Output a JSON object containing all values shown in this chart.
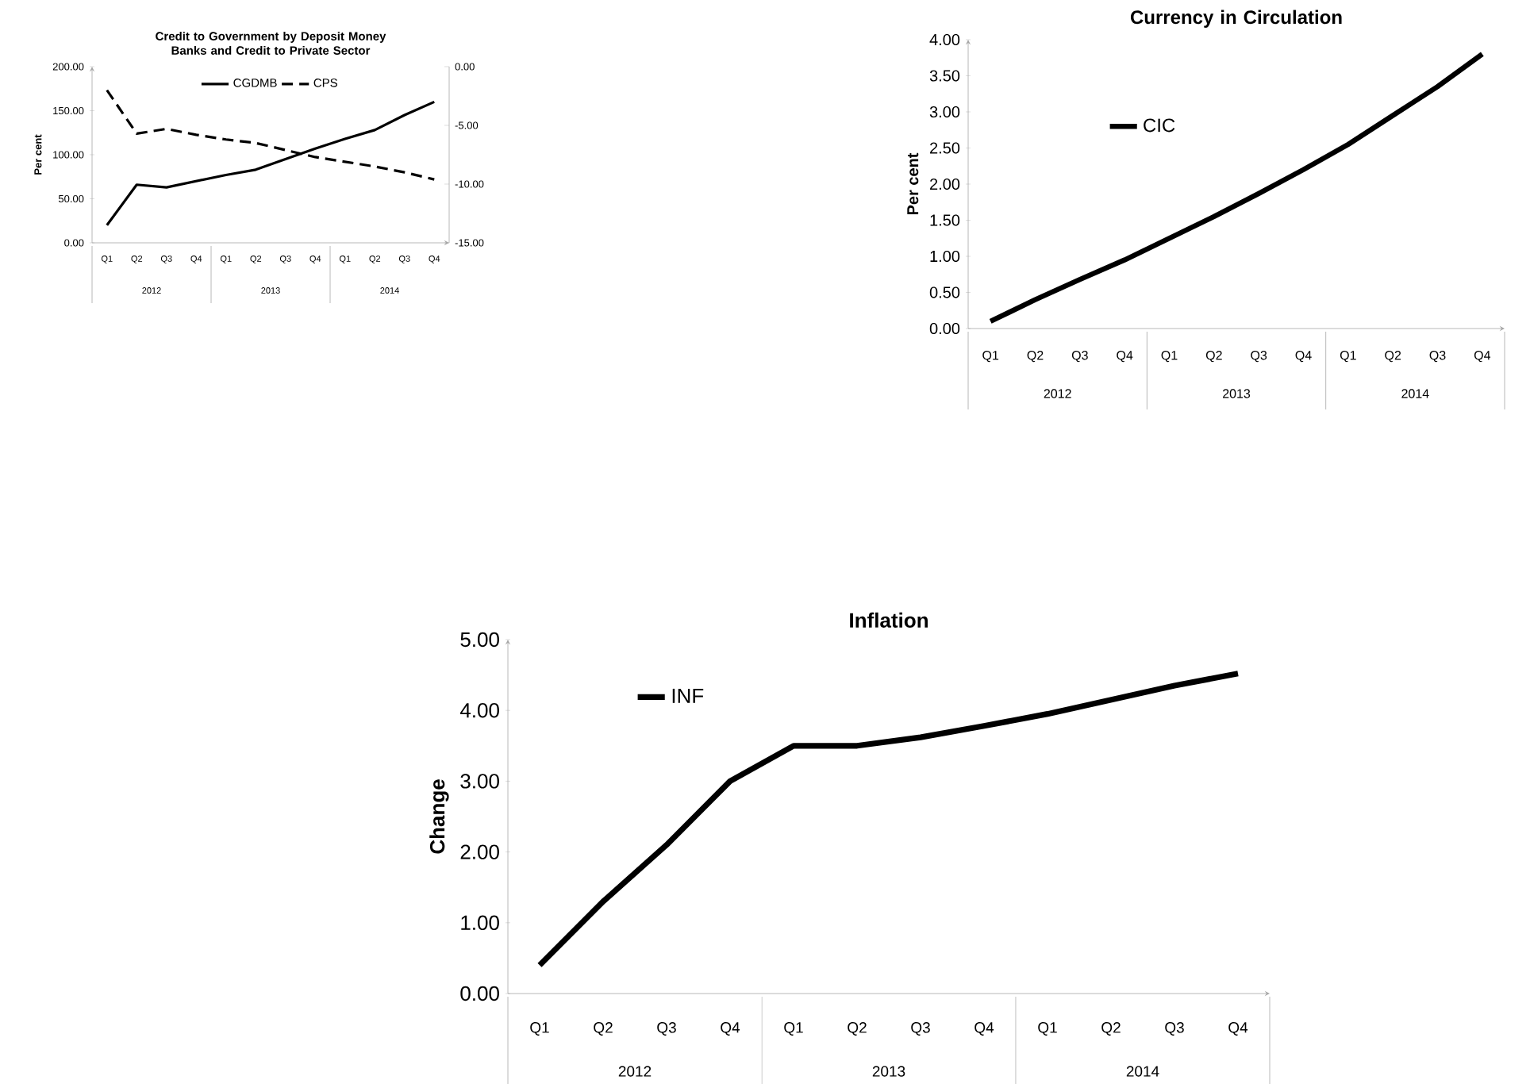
{
  "chart_data": [
    {
      "type": "line",
      "title": "Credit to Government by Deposit Money Banks and Credit to Private Sector",
      "ylabel": "Per cent",
      "categories": [
        "Q1",
        "Q2",
        "Q3",
        "Q4",
        "Q1",
        "Q2",
        "Q3",
        "Q4",
        "Q1",
        "Q2",
        "Q3",
        "Q4"
      ],
      "annotations": [
        "2012",
        "2013",
        "2014"
      ],
      "series": [
        {
          "name": "CGDMB",
          "color": "#000000",
          "line_style": "solid",
          "values": [
            20,
            66,
            63,
            70,
            77,
            83,
            95,
            107,
            118,
            128,
            145,
            160
          ]
        },
        {
          "name": "CPS",
          "color": "#000000",
          "line_style": "dashed",
          "axis": "y2",
          "values": [
            -2,
            -5.7,
            -5.3,
            -5.8,
            -6.2,
            -6.5,
            -7.1,
            -7.7,
            -8.1,
            -8.5,
            -9.0,
            -9.6
          ]
        }
      ],
      "ylim": [
        0,
        200
      ],
      "yticks": [
        {
          "value": 0,
          "label": "0.00"
        },
        {
          "value": 50,
          "label": "50.00"
        },
        {
          "value": 100,
          "label": "100.00"
        },
        {
          "value": 150,
          "label": "150.00"
        },
        {
          "value": 200,
          "label": "200.00"
        }
      ],
      "y2lim": [
        -15,
        0
      ],
      "y2ticks": [
        {
          "value": -15,
          "label": "-15.00"
        },
        {
          "value": -10,
          "label": "-10.00"
        },
        {
          "value": -5,
          "label": "-5.00"
        },
        {
          "value": 0,
          "label": "0.00"
        }
      ],
      "legend": "top"
    },
    {
      "type": "line",
      "title": "Currency in Circulation",
      "ylabel": "Per cent",
      "categories": [
        "Q1",
        "Q2",
        "Q3",
        "Q4",
        "Q1",
        "Q2",
        "Q3",
        "Q4",
        "Q1",
        "Q2",
        "Q3",
        "Q4"
      ],
      "annotations": [
        "2012",
        "2013",
        "2014"
      ],
      "series": [
        {
          "name": "CIC",
          "color": "#000000",
          "line_style": "solid",
          "values": [
            0.1,
            0.4,
            0.68,
            0.95,
            1.25,
            1.55,
            1.87,
            2.2,
            2.55,
            2.95,
            3.35,
            3.8
          ]
        }
      ],
      "ylim": [
        0,
        4
      ],
      "yticks": [
        {
          "value": 0,
          "label": "0.00"
        },
        {
          "value": 0.5,
          "label": "0.50"
        },
        {
          "value": 1,
          "label": "1.00"
        },
        {
          "value": 1.5,
          "label": "1.50"
        },
        {
          "value": 2,
          "label": "2.00"
        },
        {
          "value": 2.5,
          "label": "2.50"
        },
        {
          "value": 3,
          "label": "3.00"
        },
        {
          "value": 3.5,
          "label": "3.50"
        },
        {
          "value": 4,
          "label": "4.00"
        }
      ],
      "legend": "top left"
    },
    {
      "type": "line",
      "title": "Inflation",
      "ylabel": "Change",
      "categories": [
        "Q1",
        "Q2",
        "Q3",
        "Q4",
        "Q1",
        "Q2",
        "Q3",
        "Q4",
        "Q1",
        "Q2",
        "Q3",
        "Q4"
      ],
      "annotations": [
        "2012",
        "2013",
        "2014"
      ],
      "series": [
        {
          "name": "INF",
          "color": "#000000",
          "line_style": "solid",
          "values": [
            0.4,
            1.3,
            2.1,
            3.0,
            3.5,
            3.5,
            3.62,
            3.78,
            3.95,
            4.15,
            4.35,
            4.52
          ]
        }
      ],
      "ylim": [
        0,
        5
      ],
      "yticks": [
        {
          "value": 0,
          "label": "0.00"
        },
        {
          "value": 1,
          "label": "1.00"
        },
        {
          "value": 2,
          "label": "2.00"
        },
        {
          "value": 3,
          "label": "3.00"
        },
        {
          "value": 4,
          "label": "4.00"
        },
        {
          "value": 5,
          "label": "5.00"
        }
      ],
      "legend": "top left"
    }
  ]
}
